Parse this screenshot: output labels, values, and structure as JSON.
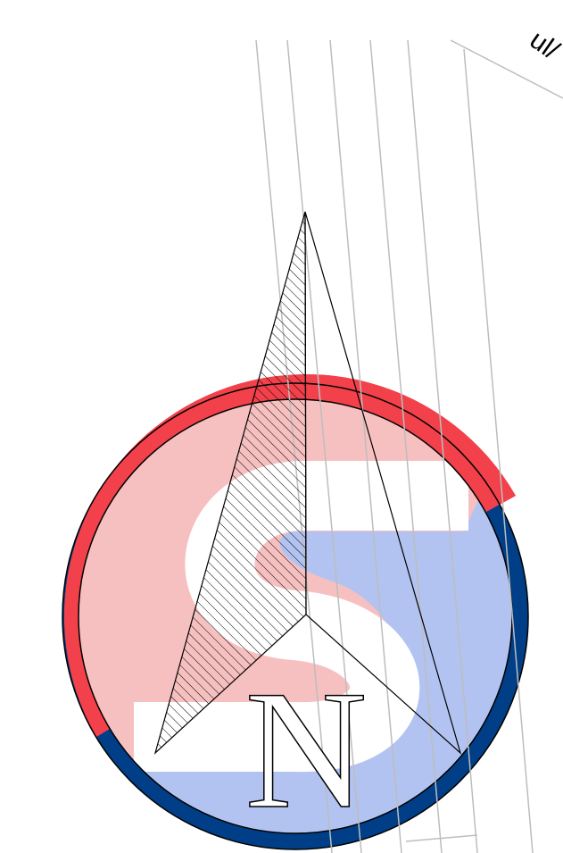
{
  "north_label": "N",
  "corner_label": "ul/"
}
